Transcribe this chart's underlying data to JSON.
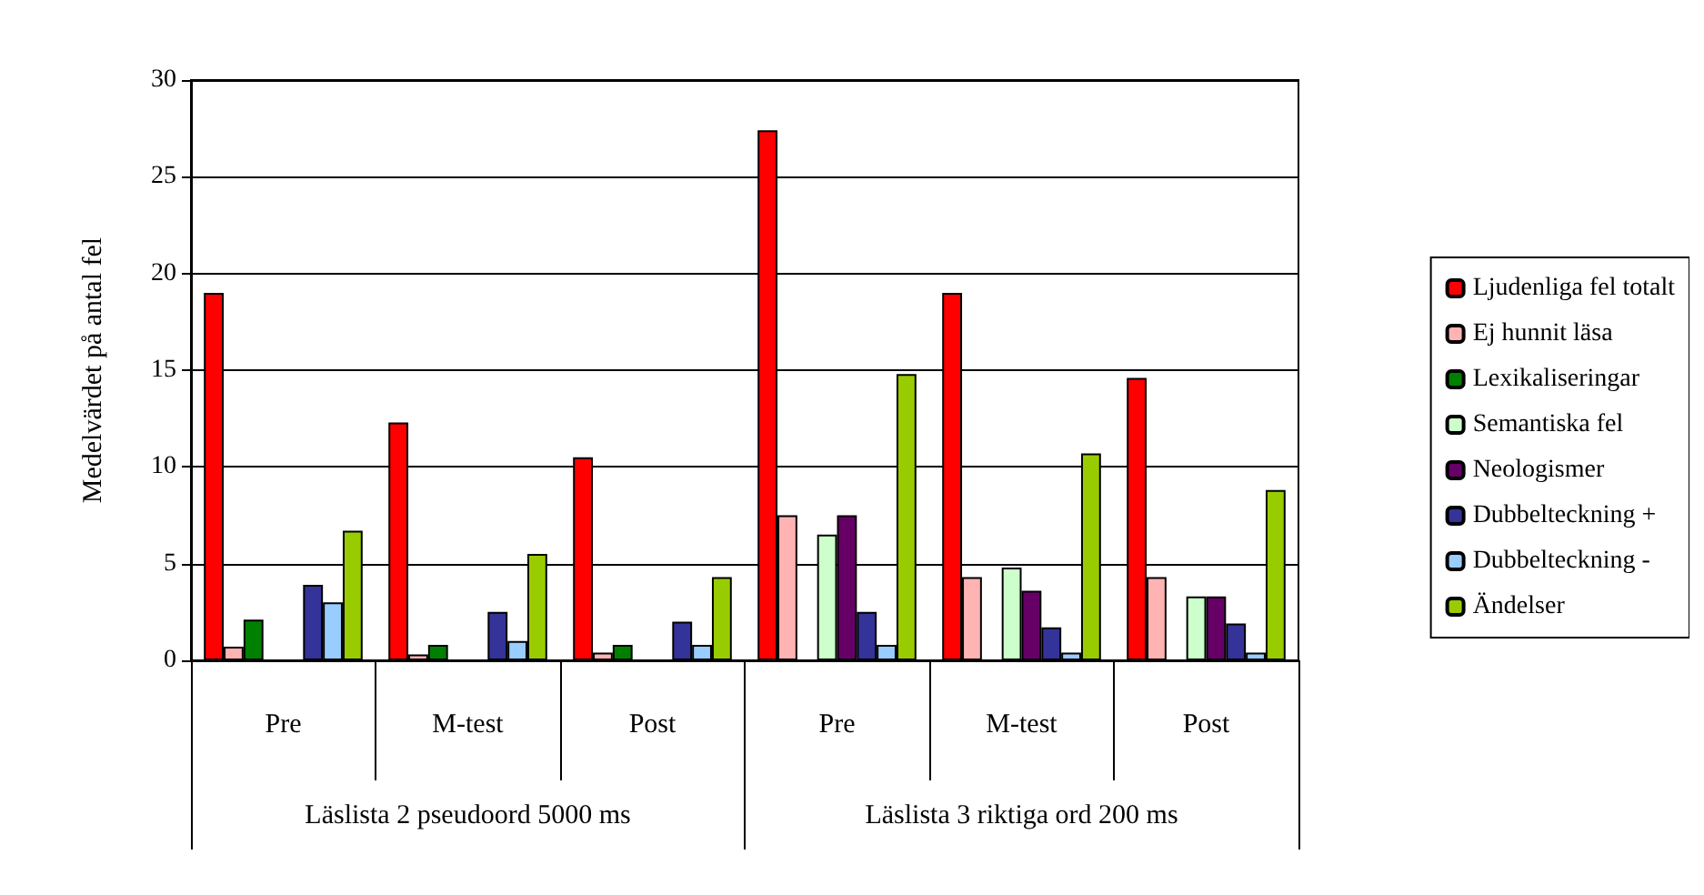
{
  "chart_data": {
    "type": "bar",
    "ylabel": "Medelvärdet på antal fel",
    "categories": [
      "Pre",
      "M-test",
      "Post",
      "Pre",
      "M-test",
      "Post"
    ],
    "annotations": [
      "Läslista 2 pseudoord 5000 ms",
      "Läslista 3 riktiga ord 200 ms"
    ],
    "series": [
      {
        "name": "Ljudenliga fel totalt",
        "color": "#ff0000",
        "values": [
          19,
          12.3,
          10.5,
          27.4,
          19,
          14.6
        ]
      },
      {
        "name": "Ej hunnit läsa",
        "color": "#ffb3b3",
        "values": [
          0.7,
          0.3,
          0.4,
          7.5,
          4.3,
          4.3
        ]
      },
      {
        "name": "Lexikaliseringar",
        "color": "#008000",
        "values": [
          2.1,
          0.8,
          0.8,
          null,
          null,
          null
        ]
      },
      {
        "name": "Semantiska fel",
        "color": "#ccffcc",
        "values": [
          null,
          null,
          null,
          6.5,
          4.8,
          3.3
        ]
      },
      {
        "name": "Neologismer",
        "color": "#660066",
        "values": [
          null,
          null,
          null,
          7.5,
          3.6,
          3.3
        ]
      },
      {
        "name": "Dubbelteckning +",
        "color": "#333399",
        "values": [
          3.9,
          2.5,
          2.0,
          2.5,
          1.7,
          1.9
        ]
      },
      {
        "name": "Dubbelteckning -",
        "color": "#99ccff",
        "values": [
          3.0,
          1.0,
          0.8,
          0.8,
          0.4,
          0.4
        ]
      },
      {
        "name": "Ändelser",
        "color": "#99cc00",
        "values": [
          6.7,
          5.5,
          4.3,
          14.8,
          10.7,
          8.8
        ]
      }
    ],
    "ylim": [
      0,
      30
    ],
    "yticks": [
      0,
      5,
      10,
      15,
      20,
      25,
      30
    ],
    "grid": "y",
    "legend": "right"
  }
}
